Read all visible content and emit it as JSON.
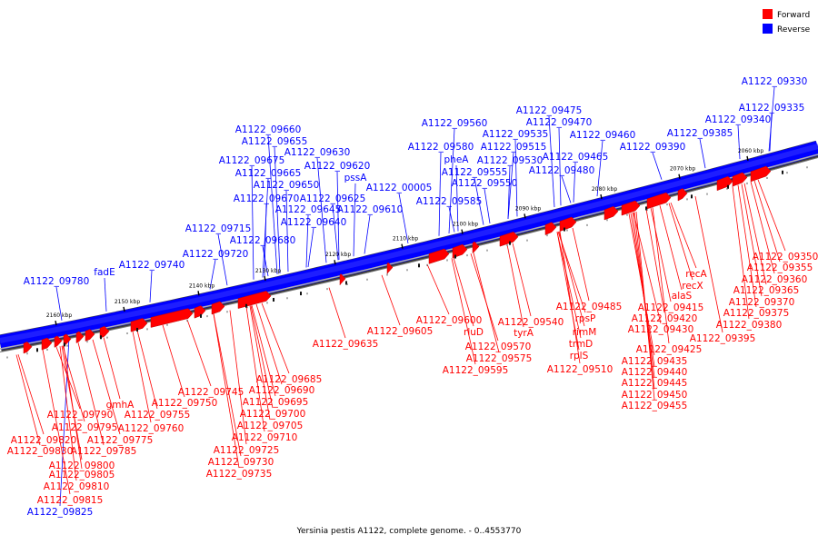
{
  "caption": "Yersinia pestis A1122, complete genome. - 0..4553770",
  "legend": {
    "forward_label": "Forward",
    "reverse_label": "Reverse",
    "forward_color": "#ff0000",
    "reverse_color": "#0000ff"
  },
  "scale_ticks": [
    "2060 kbp",
    "2070 kbp",
    "2080 kbp",
    "2090 kbp",
    "2100 kbp",
    "2110 kbp",
    "2120 kbp",
    "2130 kbp",
    "2140 kbp",
    "2150 kbp",
    "2160 kbp"
  ],
  "reverse_labels": [
    "A1122_09330",
    "A1122_09335",
    "A1122_09340",
    "A1122_09385",
    "A1122_09390",
    "A1122_09460",
    "A1122_09465",
    "A1122_09470",
    "A1122_09475",
    "A1122_09480",
    "A1122_09515",
    "A1122_09530",
    "A1122_09535",
    "A1122_09550",
    "A1122_09555",
    "A1122_09560",
    "A1122_09580",
    "pheA",
    "A1122_09585",
    "A1122_00005",
    "A1122_09610",
    "pssA",
    "A1122_09620",
    "A1122_09625",
    "A1122_09630",
    "A1122_09640",
    "A1122_09645",
    "A1122_09650",
    "A1122_09655",
    "A1122_09660",
    "A1122_09665",
    "A1122_09670",
    "A1122_09675",
    "A1122_09680",
    "A1122_09715",
    "A1122_09720",
    "A1122_09740",
    "fadE",
    "A1122_09780",
    "A1122_09825"
  ],
  "forward_labels": [
    "A1122_09350",
    "A1122_09355",
    "A1122_09360",
    "A1122_09365",
    "A1122_09370",
    "A1122_09375",
    "A1122_09380",
    "A1122_09395",
    "recA",
    "recX",
    "alaS",
    "A1122_09415",
    "A1122_09420",
    "A1122_09425",
    "A1122_09430",
    "A1122_09435",
    "A1122_09440",
    "A1122_09445",
    "A1122_09450",
    "A1122_09455",
    "A1122_09485",
    "rpsP",
    "rimM",
    "trmD",
    "rplS",
    "A1122_09510",
    "A1122_09540",
    "tyrA",
    "A1122_09570",
    "A1122_09575",
    "A1122_09595",
    "A1122_09600",
    "rluD",
    "A1122_09605",
    "A1122_09635",
    "A1122_09685",
    "A1122_09690",
    "A1122_09695",
    "A1122_09700",
    "A1122_09705",
    "A1122_09710",
    "A1122_09725",
    "A1122_09730",
    "A1122_09735",
    "A1122_09745",
    "A1122_09750",
    "A1122_09755",
    "A1122_09760",
    "gmhA",
    "A1122_09775",
    "A1122_09785",
    "A1122_09790",
    "A1122_09795",
    "A1122_09800",
    "A1122_09805",
    "A1122_09810",
    "A1122_09815",
    "A1122_09820",
    "A1122_09830"
  ]
}
